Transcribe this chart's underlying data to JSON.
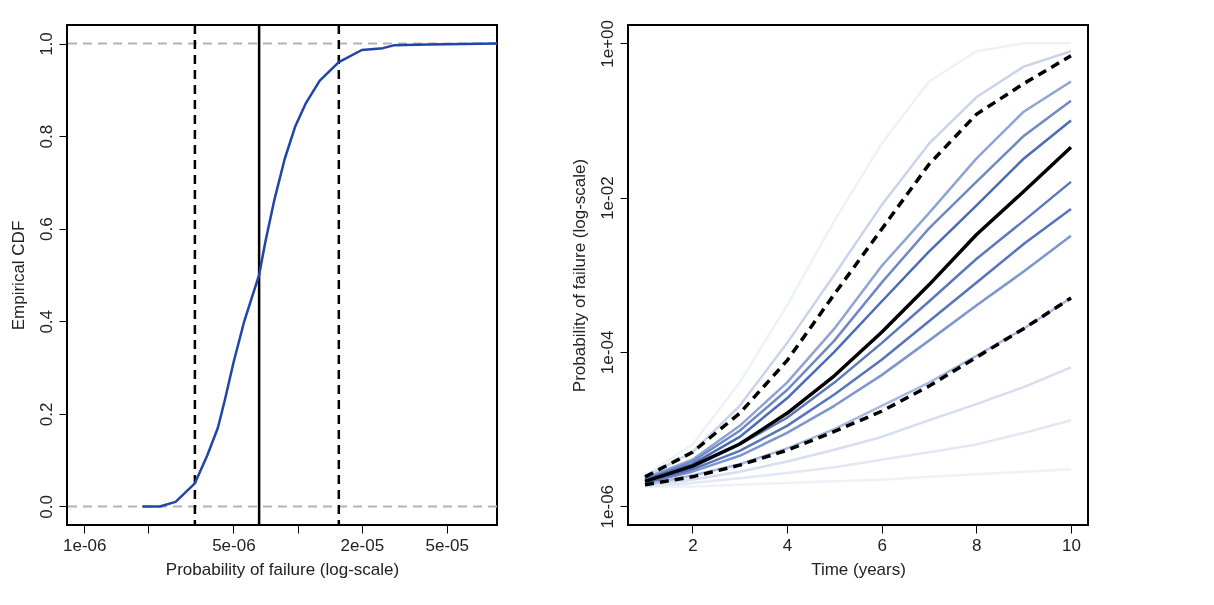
{
  "chart_data": [
    {
      "type": "line",
      "xlabel": "Probability of failure (log-scale)",
      "ylabel": "Empirical CDF",
      "log": "x",
      "grid": false,
      "marker": "none",
      "xlim": [
        8.3e-07,
        8.6e-05
      ],
      "ylim": [
        -0.04,
        1.04
      ],
      "xticks": [
        {
          "value": 1e-06,
          "label": "1e-06"
        },
        {
          "value": 2e-06,
          "label": null
        },
        {
          "value": 5e-06,
          "label": "5e-06"
        },
        {
          "value": 1e-05,
          "label": null
        },
        {
          "value": 2e-05,
          "label": "2e-05"
        },
        {
          "value": 5e-05,
          "label": "5e-05"
        }
      ],
      "yticks": [
        {
          "value": 0,
          "label": "0.0"
        },
        {
          "value": 0.2,
          "label": "0.2"
        },
        {
          "value": 0.4,
          "label": "0.4"
        },
        {
          "value": 0.6,
          "label": "0.6"
        },
        {
          "value": 0.8,
          "label": "0.8"
        },
        {
          "value": 1,
          "label": "1.0"
        }
      ],
      "ref_lines": [
        {
          "axis": "y",
          "value": 0,
          "color": "#b3b3b3",
          "line_style": "dashed"
        },
        {
          "axis": "y",
          "value": 1,
          "color": "#b3b3b3",
          "line_style": "dashed"
        },
        {
          "axis": "x",
          "value": 3.3e-06,
          "color": "#000000",
          "line_style": "dashed"
        },
        {
          "axis": "x",
          "value": 6.6e-06,
          "color": "#000000",
          "line_style": "solid"
        },
        {
          "axis": "x",
          "value": 1.56e-05,
          "color": "#000000",
          "line_style": "dashed"
        }
      ],
      "series": [
        {
          "color": "#1f45a8",
          "x": [
            1.87e-06,
            2.26e-06,
            2.68e-06,
            3.3e-06,
            3.77e-06,
            4.23e-06,
            4.56e-06,
            5e-06,
            5.62e-06,
            6.6e-06,
            7.05e-06,
            7.76e-06,
            8.69e-06,
            9.73e-06,
            1.09e-05,
            1.27e-05,
            1.56e-05,
            2e-05,
            2.51e-05,
            2.82e-05,
            4.11e-05,
            8.6e-05
          ],
          "values": [
            0,
            0,
            0.01,
            0.05,
            0.11,
            0.17,
            0.23,
            0.31,
            0.4,
            0.5,
            0.57,
            0.66,
            0.75,
            0.82,
            0.87,
            0.92,
            0.96,
            0.986,
            0.99,
            0.996,
            0.998,
            1
          ]
        }
      ]
    },
    {
      "type": "line",
      "xlabel": "Time (years)",
      "ylabel": "Probability of failure (log-scale)",
      "log": "y",
      "grid": false,
      "marker": "none",
      "x": [
        1,
        2,
        3,
        4,
        5,
        6,
        7,
        8,
        9,
        10
      ],
      "xlim": [
        0.64,
        10.36
      ],
      "ylim": [
        5.7e-07,
        1.73
      ],
      "xticks": [
        2,
        4,
        6,
        8,
        10
      ],
      "yticks": [
        {
          "value": 1,
          "label": "1e+00"
        },
        {
          "value": 0.01,
          "label": "1e-02"
        },
        {
          "value": 0.0001,
          "label": "1e-04"
        },
        {
          "value": 1e-06,
          "label": "1e-06"
        }
      ],
      "series": [
        {
          "color": "#eef1f8",
          "values": [
            2.5e-06,
            6.3e-06,
            4e-05,
            0.0004,
            0.005,
            0.05,
            0.32,
            0.79,
            1,
            1
          ]
        },
        {
          "color": "#eef1f8",
          "values": [
            1.8e-06,
            1.8e-06,
            1.9e-06,
            2e-06,
            2.1e-06,
            2.2e-06,
            2.4e-06,
            2.6e-06,
            2.8e-06,
            3e-06
          ]
        },
        {
          "color": "#e3e8f4",
          "values": [
            1.8e-06,
            2e-06,
            2.3e-06,
            2.7e-06,
            3.2e-06,
            4e-06,
            5e-06,
            6.3e-06,
            8.9e-06,
            1.3e-05
          ]
        },
        {
          "color": "#d6def0",
          "values": [
            1.9e-06,
            2.2e-06,
            2.8e-06,
            3.8e-06,
            5.4e-06,
            7.9e-06,
            1.3e-05,
            2.1e-05,
            3.5e-05,
            6.3e-05
          ]
        },
        {
          "color": "#c9d4ea",
          "values": [
            2.4e-06,
            5e-06,
            2e-05,
            0.00013,
            0.001,
            0.008,
            0.05,
            0.2,
            0.5,
            0.79
          ]
        },
        {
          "color": "#a9b9de",
          "values": [
            1.9e-06,
            2.5e-06,
            3.5e-06,
            5.6e-06,
            1e-05,
            2e-05,
            4e-05,
            8.9e-05,
            0.0002,
            0.0005
          ]
        },
        {
          "color": "#8fa4d2",
          "values": [
            2.3e-06,
            4e-06,
            1.1e-05,
            4e-05,
            0.0002,
            0.0013,
            0.0063,
            0.032,
            0.13,
            0.32
          ]
        },
        {
          "color": "#7d96cb",
          "values": [
            2e-06,
            2.8e-06,
            4.5e-06,
            8.9e-06,
            2e-05,
            5e-05,
            0.00014,
            0.0004,
            0.0011,
            0.0032
          ]
        },
        {
          "color": "#6f89c4",
          "values": [
            2.2e-06,
            3.8e-06,
            9.5e-06,
            3.2e-05,
            0.00014,
            0.00079,
            0.004,
            0.016,
            0.063,
            0.18
          ]
        },
        {
          "color": "#5a78bb",
          "values": [
            2.1e-06,
            3.2e-06,
            6.3e-06,
            1.4e-05,
            4e-05,
            0.00013,
            0.00045,
            0.0016,
            0.005,
            0.016
          ]
        },
        {
          "color": "#5574b9",
          "values": [
            2e-06,
            3e-06,
            5.2e-06,
            1.1e-05,
            2.8e-05,
            7.9e-05,
            0.00025,
            0.00079,
            0.0025,
            0.0071
          ]
        },
        {
          "color": "#4a6bb5",
          "values": [
            2.2e-06,
            3.5e-06,
            7.9e-06,
            2.5e-05,
            0.0001,
            0.00045,
            0.002,
            0.0079,
            0.032,
            0.1
          ]
        },
        {
          "color": "#000000",
          "line_style": "dashed",
          "values": [
            2.4e-06,
            5e-06,
            1.6e-05,
            7.7e-05,
            0.00056,
            0.0039,
            0.027,
            0.12,
            0.3,
            0.69
          ]
        },
        {
          "color": "#000000",
          "line_style": "dashed",
          "values": [
            1.9e-06,
            2.4e-06,
            3.4e-06,
            5.3e-06,
            9.3e-06,
            1.7e-05,
            3.6e-05,
            8.5e-05,
            0.0002,
            0.0005
          ]
        },
        {
          "color": "#000000",
          "line_style": "solid",
          "values": [
            2.1e-06,
            3.3e-06,
            6.4e-06,
            1.6e-05,
            4.9e-05,
            0.00018,
            0.00074,
            0.0033,
            0.012,
            0.045
          ]
        }
      ]
    }
  ]
}
